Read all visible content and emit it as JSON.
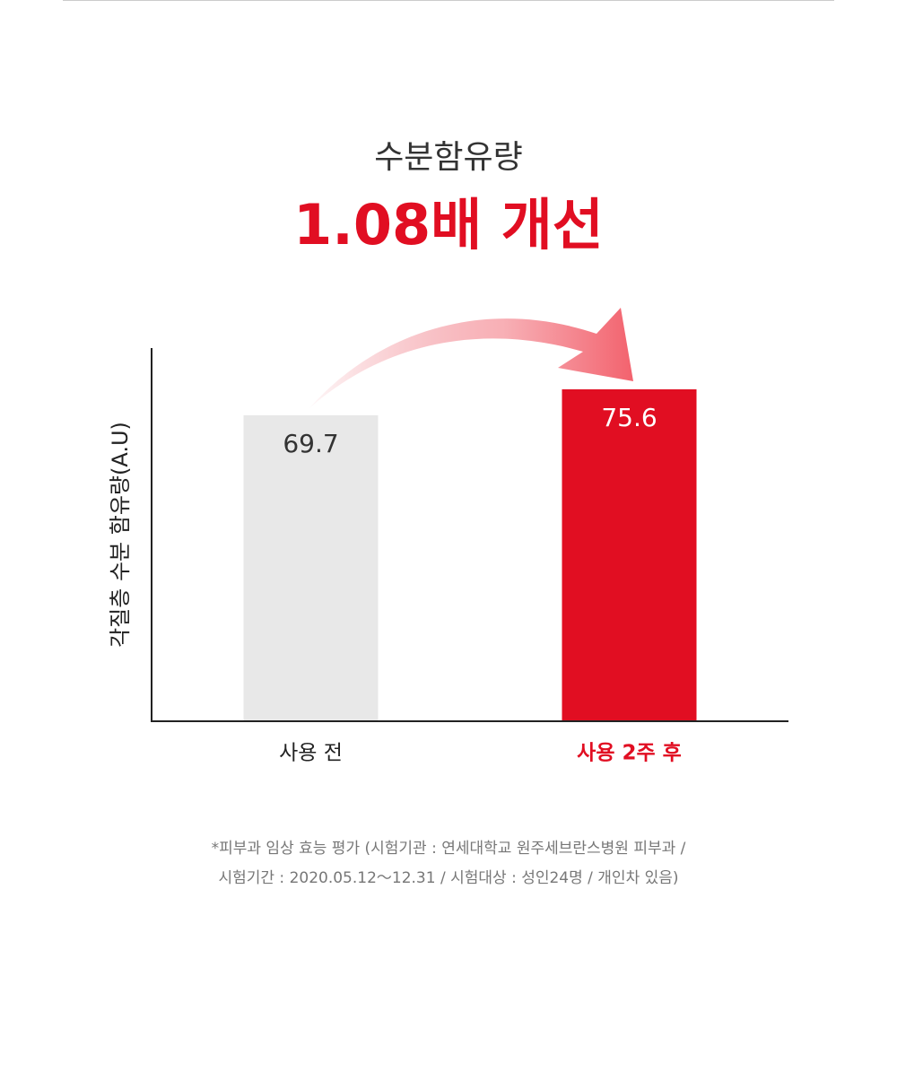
{
  "chart_data": {
    "type": "bar",
    "title": "수분함유량",
    "subtitle": "1.08배 개선",
    "y_label": "각질층 수분 함유량(A.U)",
    "categories": [
      "사용 전",
      "사용 2주 후"
    ],
    "values": [
      69.7,
      75.6
    ],
    "colors": [
      "#e8e8e8",
      "#e10e22"
    ],
    "ylim": [
      0,
      85
    ],
    "grid": false,
    "notes": [
      "*피부과 임상 효능 평가 (시험기관 : 연세대학교 원주세브란스병원 피부과 /",
      "시험기간 : 2020.05.12～12.31 / 시험대상 : 성인24명 / 개인차 있음)"
    ]
  }
}
